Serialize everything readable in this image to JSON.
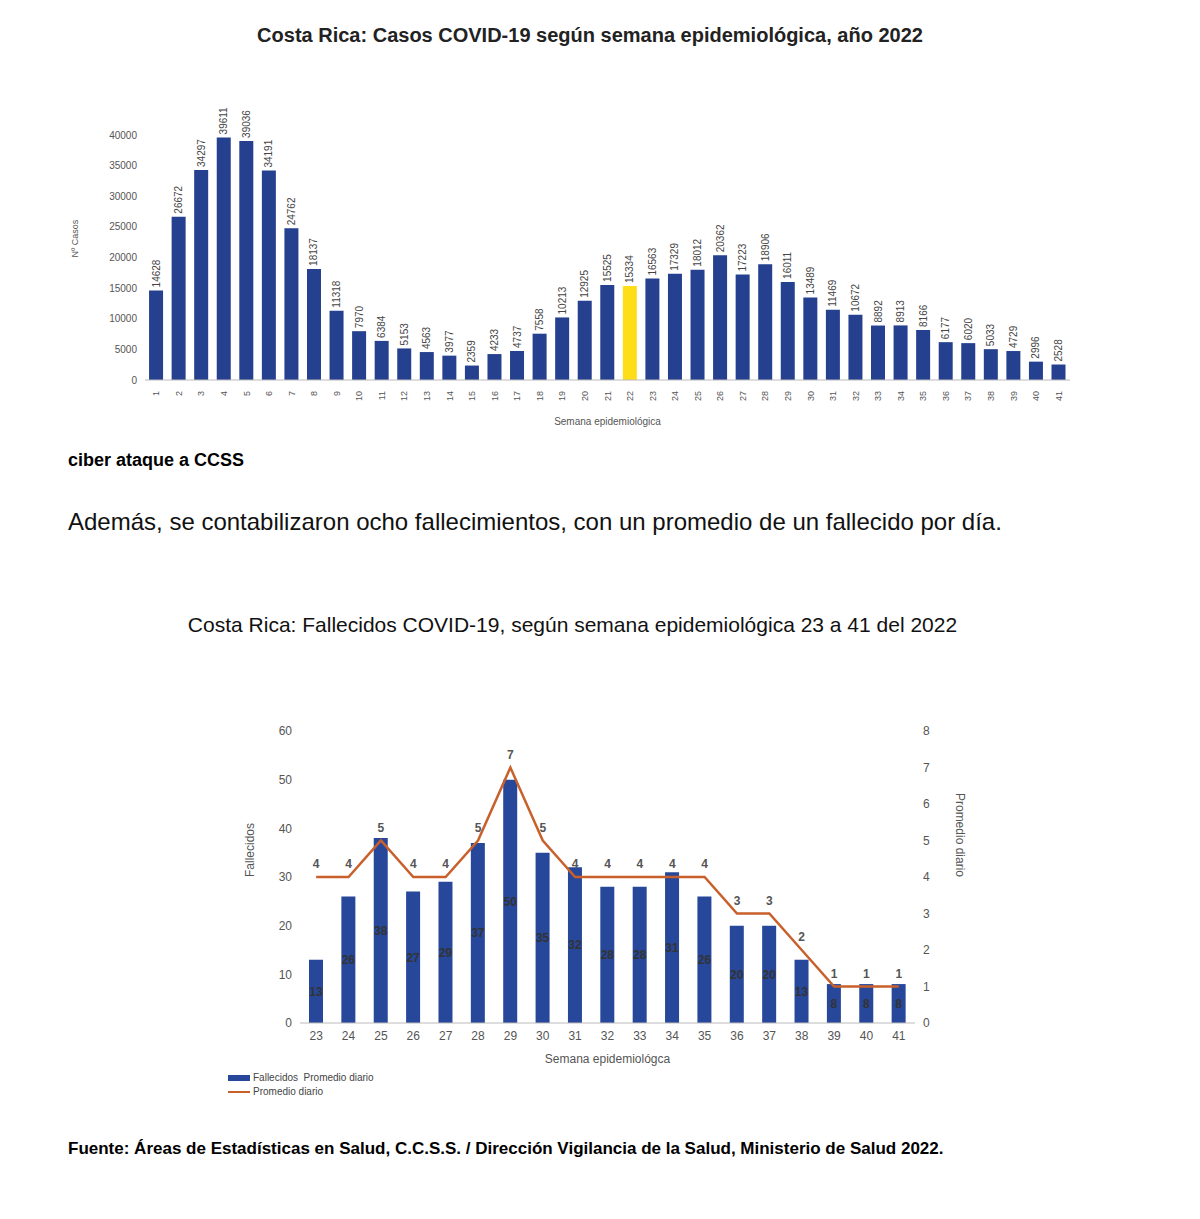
{
  "chart_data": [
    {
      "type": "bar",
      "title": "Costa Rica: Casos COVID-19 según semana epidemiológica, año 2022",
      "x_label": "Semana epidemiológica",
      "y_label": "Nº Casos",
      "categories": [
        "1",
        "2",
        "3",
        "4",
        "5",
        "6",
        "7",
        "8",
        "9",
        "10",
        "11",
        "12",
        "13",
        "14",
        "15",
        "16",
        "17",
        "18",
        "19",
        "20",
        "21",
        "22",
        "23",
        "24",
        "25",
        "26",
        "27",
        "28",
        "29",
        "30",
        "31",
        "32",
        "33",
        "34",
        "35",
        "36",
        "37",
        "38",
        "39",
        "40",
        "41"
      ],
      "values": [
        14628,
        26672,
        34297,
        39611,
        39036,
        34191,
        24762,
        18137,
        11318,
        7970,
        6384,
        5153,
        4563,
        3977,
        2359,
        4233,
        4737,
        7558,
        10213,
        12925,
        15525,
        15334,
        16563,
        17329,
        18012,
        20362,
        17223,
        18906,
        16011,
        13489,
        11469,
        10672,
        8892,
        8913,
        8166,
        6177,
        6020,
        5033,
        4729,
        2996,
        2528
      ],
      "colors": [
        "#24408e",
        "#24408e",
        "#24408e",
        "#24408e",
        "#24408e",
        "#24408e",
        "#24408e",
        "#24408e",
        "#24408e",
        "#24408e",
        "#24408e",
        "#24408e",
        "#24408e",
        "#24408e",
        "#24408e",
        "#24408e",
        "#24408e",
        "#24408e",
        "#24408e",
        "#24408e",
        "#24408e",
        "#ffde17",
        "#24408e",
        "#24408e",
        "#24408e",
        "#24408e",
        "#24408e",
        "#24408e",
        "#24408e",
        "#24408e",
        "#24408e",
        "#24408e",
        "#24408e",
        "#24408e",
        "#24408e",
        "#24408e",
        "#24408e",
        "#24408e",
        "#24408e",
        "#24408e",
        "#24408e"
      ],
      "ylim": [
        0,
        40000
      ],
      "yticks": [
        0,
        5000,
        10000,
        15000,
        20000,
        25000,
        30000,
        35000,
        40000
      ],
      "grid": false,
      "data_labels": true
    },
    {
      "type": "bar",
      "title": "Costa Rica: Fallecidos COVID-19, según semana epidemiológica 23 a 41 del 2022",
      "x_label": "Semana epidemiológca",
      "y_label": "Fallecidos",
      "y2_label": "Promedio diario",
      "categories": [
        "23",
        "24",
        "25",
        "26",
        "27",
        "28",
        "29",
        "30",
        "31",
        "32",
        "33",
        "34",
        "35",
        "36",
        "37",
        "38",
        "39",
        "40",
        "41"
      ],
      "series": [
        {
          "name": "Fallecidos  Promedio diario",
          "type": "bar",
          "color": "#26479a",
          "values": [
            13,
            26,
            38,
            27,
            29,
            37,
            50,
            35,
            32,
            28,
            28,
            31,
            26,
            20,
            20,
            13,
            8,
            8,
            8
          ]
        },
        {
          "name": "Promedio diario",
          "type": "line",
          "axis": "y2",
          "color": "#c9602b",
          "values": [
            4,
            4,
            5,
            4,
            4,
            5,
            7,
            5,
            4,
            4,
            4,
            4,
            4,
            3,
            3,
            2,
            1,
            1,
            1
          ]
        }
      ],
      "ylim": [
        0,
        60
      ],
      "yticks": [
        0,
        10,
        20,
        30,
        40,
        50,
        60
      ],
      "y2lim": [
        0,
        8
      ],
      "y2ticks": [
        0,
        1,
        2,
        3,
        4,
        5,
        6,
        7,
        8
      ],
      "grid": false,
      "legend": "bottom-left",
      "data_labels": true
    }
  ],
  "document": {
    "note": "ciber ataque a CCSS",
    "paragraph": "Además, se contabilizaron ocho fallecimientos, con un promedio de un fallecido por día.",
    "source": "Fuente: Áreas de Estadísticas en Salud, C.C.S.S. / Dirección Vigilancia de la Salud, Ministerio de Salud 2022."
  }
}
